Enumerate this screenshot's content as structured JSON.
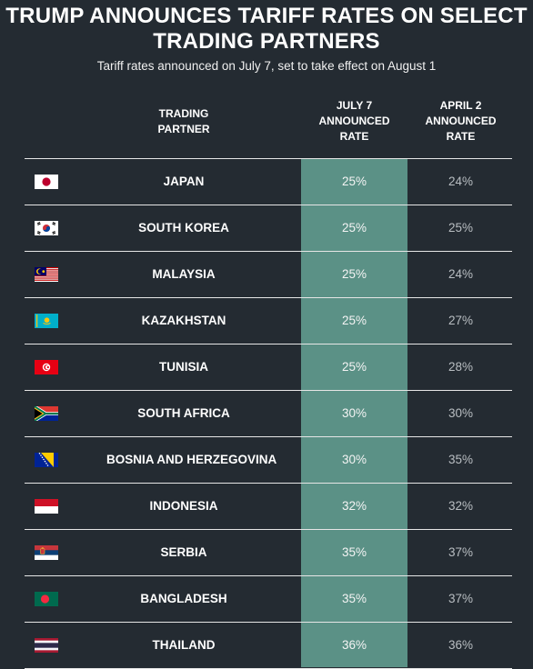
{
  "title": "TRUMP ANNOUNCES TARIFF RATES ON SELECT TRADING PARTNERS",
  "subtitle": "Tariff rates announced on July 7, set to take effect on August 1",
  "headers": {
    "partner": "TRADING\nPARTNER",
    "july": "JULY 7\nANNOUNCED\nRATE",
    "april": "APRIL 2\nANNOUNCED\nRATE"
  },
  "colors": {
    "background": "#242b32",
    "highlight": "#5b9186"
  },
  "chart_data": {
    "type": "table",
    "title": "TRUMP ANNOUNCES TARIFF RATES ON SELECT TRADING PARTNERS",
    "subtitle": "Tariff rates announced on July 7, set to take effect on August 1",
    "columns": [
      "TRADING PARTNER",
      "JULY 7 ANNOUNCED RATE",
      "APRIL 2 ANNOUNCED RATE"
    ],
    "rows": [
      {
        "flag": "japan-flag-icon",
        "partner": "JAPAN",
        "july": "25%",
        "april": "24%"
      },
      {
        "flag": "south-korea-flag-icon",
        "partner": "SOUTH KOREA",
        "july": "25%",
        "april": "25%"
      },
      {
        "flag": "malaysia-flag-icon",
        "partner": "MALAYSIA",
        "july": "25%",
        "april": "24%"
      },
      {
        "flag": "kazakhstan-flag-icon",
        "partner": "KAZAKHSTAN",
        "july": "25%",
        "april": "27%"
      },
      {
        "flag": "tunisia-flag-icon",
        "partner": "TUNISIA",
        "july": "25%",
        "april": "28%"
      },
      {
        "flag": "south-africa-flag-icon",
        "partner": "SOUTH AFRICA",
        "july": "30%",
        "april": "30%"
      },
      {
        "flag": "bosnia-flag-icon",
        "partner": "BOSNIA AND HERZEGOVINA",
        "july": "30%",
        "april": "35%"
      },
      {
        "flag": "indonesia-flag-icon",
        "partner": "INDONESIA",
        "july": "32%",
        "april": "32%"
      },
      {
        "flag": "serbia-flag-icon",
        "partner": "SERBIA",
        "july": "35%",
        "april": "37%"
      },
      {
        "flag": "bangladesh-flag-icon",
        "partner": "BANGLADESH",
        "july": "35%",
        "april": "37%"
      },
      {
        "flag": "thailand-flag-icon",
        "partner": "THAILAND",
        "july": "36%",
        "april": "36%"
      }
    ]
  }
}
